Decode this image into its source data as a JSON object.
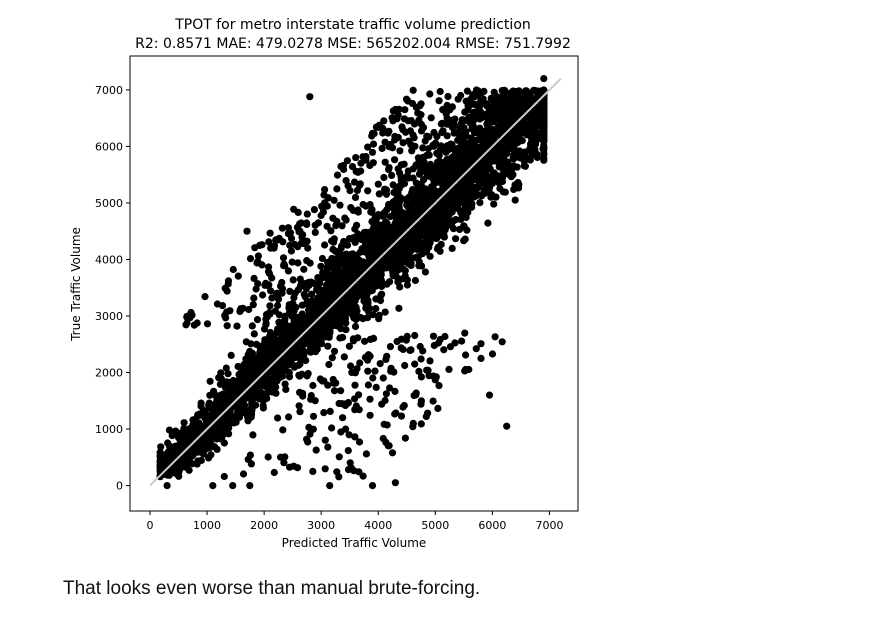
{
  "chart_data": {
    "type": "scatter",
    "title": "TPOT for metro interstate traffic volume prediction",
    "subtitle": "R2: 0.8571 MAE: 479.0278 MSE: 565202.004 RMSE: 751.7992",
    "xlabel": "Predicted Traffic Volume",
    "ylabel": "True Traffic Volume",
    "xlim": [
      -350,
      7500
    ],
    "ylim": [
      -450,
      7600
    ],
    "xticks": [
      0,
      1000,
      2000,
      3000,
      4000,
      5000,
      6000,
      7000
    ],
    "yticks": [
      0,
      1000,
      2000,
      3000,
      4000,
      5000,
      6000,
      7000
    ],
    "xtick_labels": [
      "0",
      "1000",
      "2000",
      "3000",
      "4000",
      "5000",
      "6000",
      "7000"
    ],
    "ytick_labels": [
      "0",
      "1000",
      "2000",
      "3000",
      "4000",
      "5000",
      "6000",
      "7000"
    ],
    "reference_line": {
      "x": [
        0,
        7200
      ],
      "y": [
        0,
        7200
      ],
      "color": "#cccccc"
    },
    "point_color": "#000000",
    "outliers": [
      {
        "x": 2800,
        "y": 6880
      },
      {
        "x": 6900,
        "y": 7200
      },
      {
        "x": 6250,
        "y": 1050
      },
      {
        "x": 5950,
        "y": 1600
      },
      {
        "x": 5800,
        "y": 2250
      },
      {
        "x": 3150,
        "y": 0
      },
      {
        "x": 3900,
        "y": 0
      },
      {
        "x": 4300,
        "y": 50
      },
      {
        "x": 1100,
        "y": 0
      },
      {
        "x": 1450,
        "y": 0
      },
      {
        "x": 1750,
        "y": 0
      },
      {
        "x": 6400,
        "y": 5050
      },
      {
        "x": 1700,
        "y": 4500
      },
      {
        "x": 300,
        "y": 0
      }
    ],
    "n_points_estimate": 4000
  },
  "caption": "That looks even worse than manual brute-forcing."
}
